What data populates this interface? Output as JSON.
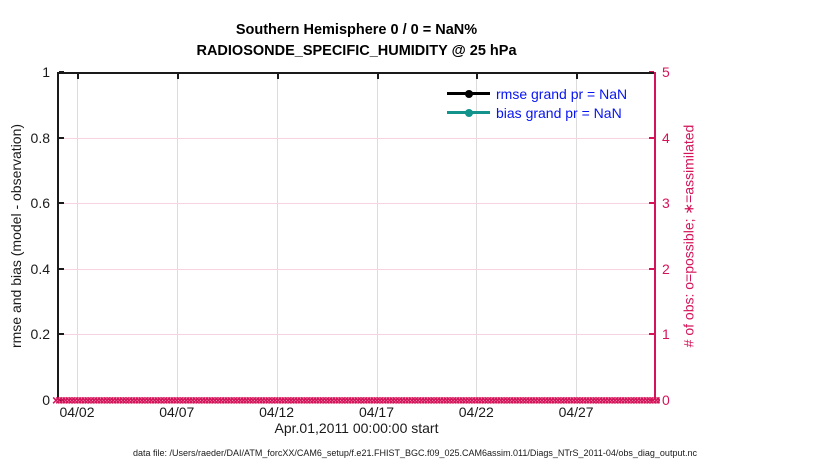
{
  "colors": {
    "obs_axis_crimson": "#d4145a",
    "obs_grid_pink": "#f7d3e1",
    "x_grid_gray": "#dcdcdc",
    "axes_black": "#1a1a1a",
    "legend_text_blue": "#0714f2",
    "rmse_black": "#000000",
    "bias_teal": "#12948c"
  },
  "chart_data": {
    "type": "line",
    "title_line1": "Southern Hemisphere 0 / 0 = NaN%",
    "title_line2": "RADIOSONDE_SPECIFIC_HUMIDITY @ 25 hPa",
    "xlabel": "Apr.01,2011 00:00:00 start",
    "ylabel_left": "rmse and bias (model - observation)",
    "ylabel_right": "# of obs: o=possible; ∗=assimilated",
    "x_axis": {
      "start": "Apr.01,2011 00:00:00",
      "lim_days_from_start": [
        0,
        30
      ],
      "tick_labels": [
        "04/02",
        "04/07",
        "04/12",
        "04/17",
        "04/22",
        "04/27"
      ],
      "tick_days": [
        1,
        6,
        11,
        16,
        21,
        26
      ]
    },
    "y_axis_left": {
      "lim": [
        0,
        1
      ],
      "tick_values": [
        0,
        0.2,
        0.4,
        0.6,
        0.8,
        1
      ],
      "tick_labels": [
        "0",
        "0.2",
        "0.4",
        "0.6",
        "0.8",
        "1"
      ]
    },
    "y_axis_right": {
      "lim": [
        0,
        5
      ],
      "tick_values": [
        0,
        1,
        2,
        3,
        4,
        5
      ],
      "tick_labels": [
        "0",
        "1",
        "2",
        "3",
        "4",
        "5"
      ]
    },
    "series": [
      {
        "name": "rmse grand pr = NaN",
        "color": "#000000",
        "value": "NaN",
        "points": []
      },
      {
        "name": "bias grand pr = NaN",
        "color": "#12948c",
        "value": "NaN",
        "points": []
      }
    ],
    "assimilated_markers": {
      "value": 0,
      "marker": "×",
      "count": 200,
      "color": "#d4145a",
      "note": "dense row of assimilated-count markers all at 0 along entire x-axis"
    },
    "stats": {
      "possible": "0",
      "assimilated": "0",
      "percent": "NaN%"
    },
    "legend_position": "top-right-inside",
    "grid": true
  },
  "footer": {
    "text": "data file: /Users/raeder/DAI/ATM_forcXX/CAM6_setup/f.e21.FHIST_BGC.f09_025.CAM6assim.011/Diags_NTrS_2011-04/obs_diag_output.nc"
  }
}
